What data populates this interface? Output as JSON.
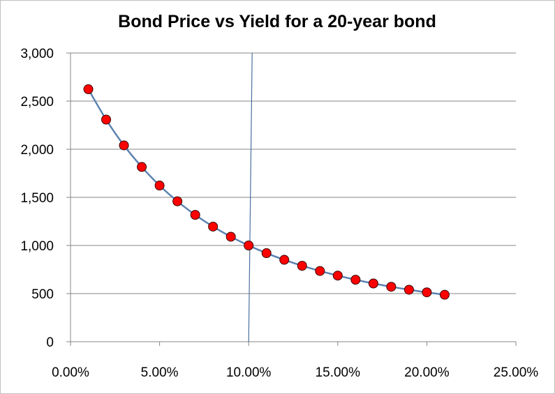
{
  "chart_data": {
    "type": "scatter",
    "title": "Bond Price vs Yield for a 20-year bond",
    "xlabel": "",
    "ylabel": "",
    "xlim": [
      0,
      0.25
    ],
    "ylim": [
      0,
      3000
    ],
    "x_ticks": [
      0,
      0.05,
      0.1,
      0.15,
      0.2,
      0.25
    ],
    "x_tick_labels": [
      "0.00%",
      "5.00%",
      "10.00%",
      "15.00%",
      "20.00%",
      "25.00%"
    ],
    "y_ticks": [
      0,
      500,
      1000,
      1500,
      2000,
      2500,
      3000
    ],
    "y_tick_labels": [
      "0",
      "500",
      "1,000",
      "1,500",
      "2,000",
      "2,500",
      "3,000"
    ],
    "grid": "horizontal",
    "legend": "none",
    "reference_line": {
      "x": 0.1,
      "color": "#4a6f9d"
    },
    "line_color": "#5b82b0",
    "marker_color": "#ff0000",
    "series": [
      {
        "x": [
          0.01,
          0.02,
          0.03,
          0.04,
          0.05,
          0.06,
          0.07,
          0.08,
          0.09,
          0.1,
          0.11,
          0.12,
          0.13,
          0.14,
          0.15,
          0.16,
          0.17,
          0.18,
          0.19,
          0.2,
          0.21
        ],
        "y": [
          2624,
          2308,
          2040,
          1816,
          1623,
          1459,
          1318,
          1196,
          1091,
          1000,
          920,
          851,
          789,
          735,
          687,
          644,
          605,
          571,
          540,
          513,
          488
        ]
      }
    ]
  }
}
